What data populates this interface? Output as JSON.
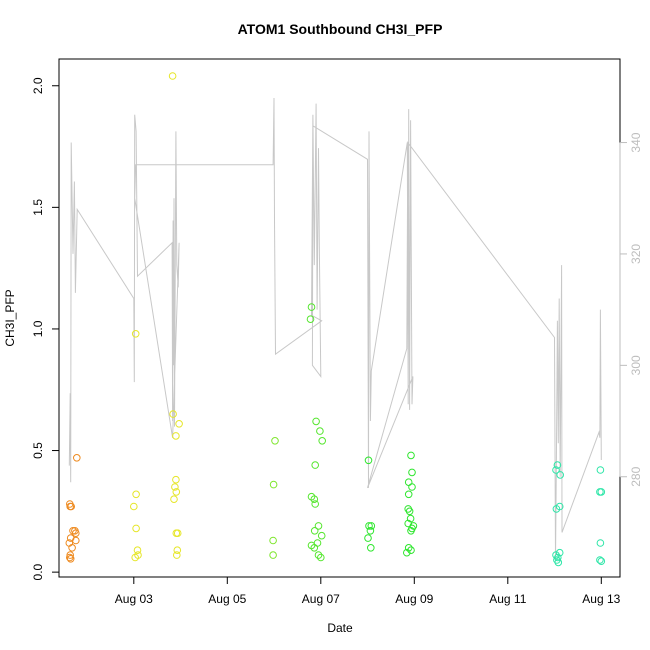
{
  "chart_data": {
    "type": "scatter",
    "title": "ATOM1 Southbound CH3I_PFP",
    "xlabel": "Date",
    "ylabel": "CH3I_PFP",
    "xlim": [
      1.4,
      13.4
    ],
    "ylim": [
      -0.02,
      2.11
    ],
    "y2lim": [
      262,
      355
    ],
    "x_tick_values": [
      3,
      5,
      7,
      9,
      11,
      13
    ],
    "x_tick_labels": [
      "Aug 03",
      "Aug 05",
      "Aug 07",
      "Aug 09",
      "Aug 11",
      "Aug 13"
    ],
    "y_tick_values": [
      0.0,
      0.5,
      1.0,
      1.5,
      2.0
    ],
    "y_tick_labels": [
      "0.0",
      "0.5",
      "1.0",
      "1.5",
      "2.0"
    ],
    "y2_tick_values": [
      280,
      300,
      320,
      340
    ],
    "y2_tick_labels": [
      "280",
      "300",
      "320",
      "340"
    ],
    "grid": false,
    "legend": "none",
    "points": [
      {
        "x": 1.63,
        "y": 0.28,
        "color": "#ee8a1f"
      },
      {
        "x": 1.64,
        "y": 0.27,
        "color": "#ee8a1f"
      },
      {
        "x": 1.66,
        "y": 0.27,
        "color": "#ee8a1f"
      },
      {
        "x": 1.78,
        "y": 0.47,
        "color": "#ee8a1f"
      },
      {
        "x": 1.7,
        "y": 0.17,
        "color": "#ee8a1f"
      },
      {
        "x": 1.74,
        "y": 0.17,
        "color": "#ee8a1f"
      },
      {
        "x": 1.76,
        "y": 0.16,
        "color": "#ee8a1f"
      },
      {
        "x": 1.65,
        "y": 0.14,
        "color": "#ee8a1f"
      },
      {
        "x": 1.76,
        "y": 0.13,
        "color": "#ee8a1f"
      },
      {
        "x": 1.62,
        "y": 0.12,
        "color": "#ee8a1f"
      },
      {
        "x": 1.68,
        "y": 0.1,
        "color": "#ee8a1f"
      },
      {
        "x": 1.64,
        "y": 0.07,
        "color": "#ee8a1f"
      },
      {
        "x": 1.63,
        "y": 0.06,
        "color": "#ee8a1f"
      },
      {
        "x": 1.65,
        "y": 0.055,
        "color": "#ee8a1f"
      },
      {
        "x": 3.04,
        "y": 0.98,
        "color": "#e6e629"
      },
      {
        "x": 3.05,
        "y": 0.32,
        "color": "#e6e629"
      },
      {
        "x": 3.0,
        "y": 0.27,
        "color": "#e6e629"
      },
      {
        "x": 3.05,
        "y": 0.18,
        "color": "#e6e629"
      },
      {
        "x": 3.08,
        "y": 0.09,
        "color": "#e6e629"
      },
      {
        "x": 3.09,
        "y": 0.07,
        "color": "#e6e629"
      },
      {
        "x": 3.03,
        "y": 0.06,
        "color": "#e6e629"
      },
      {
        "x": 3.83,
        "y": 2.04,
        "color": "#e6e629"
      },
      {
        "x": 3.84,
        "y": 0.65,
        "color": "#e6e629"
      },
      {
        "x": 3.97,
        "y": 0.61,
        "color": "#e6e629"
      },
      {
        "x": 3.9,
        "y": 0.56,
        "color": "#e6e629"
      },
      {
        "x": 3.9,
        "y": 0.38,
        "color": "#e6e629"
      },
      {
        "x": 3.88,
        "y": 0.35,
        "color": "#e6e629"
      },
      {
        "x": 3.91,
        "y": 0.33,
        "color": "#e6e629"
      },
      {
        "x": 3.86,
        "y": 0.3,
        "color": "#e6e629"
      },
      {
        "x": 3.91,
        "y": 0.16,
        "color": "#e6e629"
      },
      {
        "x": 3.94,
        "y": 0.16,
        "color": "#e6e629"
      },
      {
        "x": 3.93,
        "y": 0.09,
        "color": "#e6e629"
      },
      {
        "x": 3.92,
        "y": 0.07,
        "color": "#e6e629"
      },
      {
        "x": 6.02,
        "y": 0.54,
        "color": "#7fe62e"
      },
      {
        "x": 5.99,
        "y": 0.36,
        "color": "#7fe62e"
      },
      {
        "x": 5.98,
        "y": 0.13,
        "color": "#7fe62e"
      },
      {
        "x": 5.98,
        "y": 0.07,
        "color": "#7fe62e"
      },
      {
        "x": 6.8,
        "y": 1.09,
        "color": "#55e62e"
      },
      {
        "x": 6.78,
        "y": 1.04,
        "color": "#55e62e"
      },
      {
        "x": 6.9,
        "y": 0.62,
        "color": "#55e62e"
      },
      {
        "x": 6.98,
        "y": 0.58,
        "color": "#55e62e"
      },
      {
        "x": 7.03,
        "y": 0.54,
        "color": "#55e62e"
      },
      {
        "x": 6.88,
        "y": 0.44,
        "color": "#55e62e"
      },
      {
        "x": 6.8,
        "y": 0.31,
        "color": "#55e62e"
      },
      {
        "x": 6.86,
        "y": 0.3,
        "color": "#55e62e"
      },
      {
        "x": 6.88,
        "y": 0.28,
        "color": "#55e62e"
      },
      {
        "x": 6.95,
        "y": 0.19,
        "color": "#55e62e"
      },
      {
        "x": 6.87,
        "y": 0.17,
        "color": "#55e62e"
      },
      {
        "x": 7.02,
        "y": 0.15,
        "color": "#55e62e"
      },
      {
        "x": 6.8,
        "y": 0.11,
        "color": "#55e62e"
      },
      {
        "x": 6.86,
        "y": 0.1,
        "color": "#55e62e"
      },
      {
        "x": 6.93,
        "y": 0.12,
        "color": "#55e62e"
      },
      {
        "x": 6.95,
        "y": 0.07,
        "color": "#55e62e"
      },
      {
        "x": 7.0,
        "y": 0.06,
        "color": "#55e62e"
      },
      {
        "x": 8.02,
        "y": 0.46,
        "color": "#2ee62e"
      },
      {
        "x": 8.08,
        "y": 0.19,
        "color": "#2ee62e"
      },
      {
        "x": 8.03,
        "y": 0.19,
        "color": "#2ee62e"
      },
      {
        "x": 8.06,
        "y": 0.17,
        "color": "#2ee62e"
      },
      {
        "x": 8.01,
        "y": 0.14,
        "color": "#2ee62e"
      },
      {
        "x": 8.07,
        "y": 0.1,
        "color": "#2ee62e"
      },
      {
        "x": 8.93,
        "y": 0.48,
        "color": "#2ee62e"
      },
      {
        "x": 8.95,
        "y": 0.41,
        "color": "#2ee62e"
      },
      {
        "x": 8.88,
        "y": 0.37,
        "color": "#2ee62e"
      },
      {
        "x": 8.95,
        "y": 0.35,
        "color": "#2ee62e"
      },
      {
        "x": 8.88,
        "y": 0.32,
        "color": "#2ee62e"
      },
      {
        "x": 8.87,
        "y": 0.26,
        "color": "#2ee62e"
      },
      {
        "x": 8.9,
        "y": 0.25,
        "color": "#2ee62e"
      },
      {
        "x": 8.92,
        "y": 0.22,
        "color": "#2ee62e"
      },
      {
        "x": 8.87,
        "y": 0.2,
        "color": "#2ee62e"
      },
      {
        "x": 8.98,
        "y": 0.19,
        "color": "#2ee62e"
      },
      {
        "x": 8.95,
        "y": 0.18,
        "color": "#2ee62e"
      },
      {
        "x": 8.93,
        "y": 0.17,
        "color": "#2ee62e"
      },
      {
        "x": 8.88,
        "y": 0.1,
        "color": "#2ee62e"
      },
      {
        "x": 8.93,
        "y": 0.09,
        "color": "#2ee62e"
      },
      {
        "x": 8.84,
        "y": 0.08,
        "color": "#2ee62e"
      },
      {
        "x": 12.06,
        "y": 0.44,
        "color": "#2ee6a8"
      },
      {
        "x": 12.03,
        "y": 0.42,
        "color": "#2ee6a8"
      },
      {
        "x": 12.12,
        "y": 0.4,
        "color": "#2ee6a8"
      },
      {
        "x": 12.11,
        "y": 0.27,
        "color": "#2ee6a8"
      },
      {
        "x": 12.04,
        "y": 0.26,
        "color": "#2ee6a8"
      },
      {
        "x": 12.11,
        "y": 0.08,
        "color": "#2ee6a8"
      },
      {
        "x": 12.03,
        "y": 0.07,
        "color": "#2ee6a8"
      },
      {
        "x": 12.07,
        "y": 0.06,
        "color": "#2ee6a8"
      },
      {
        "x": 12.05,
        "y": 0.05,
        "color": "#2ee6a8"
      },
      {
        "x": 12.08,
        "y": 0.04,
        "color": "#2ee6a8"
      },
      {
        "x": 12.98,
        "y": 0.42,
        "color": "#2ee6a8"
      },
      {
        "x": 12.97,
        "y": 0.33,
        "color": "#2ee6a8"
      },
      {
        "x": 13.0,
        "y": 0.33,
        "color": "#2ee6a8"
      },
      {
        "x": 12.98,
        "y": 0.12,
        "color": "#2ee6a8"
      },
      {
        "x": 12.97,
        "y": 0.05,
        "color": "#2ee6a8"
      },
      {
        "x": 13.0,
        "y": 0.045,
        "color": "#2ee6a8"
      }
    ],
    "line_series": {
      "color": "#c8c8c8",
      "axis": "right",
      "points": [
        [
          1.62,
          282
        ],
        [
          1.64,
          295
        ],
        [
          1.65,
          279
        ],
        [
          1.66,
          340
        ],
        [
          1.7,
          320
        ],
        [
          1.73,
          333
        ],
        [
          1.75,
          313
        ],
        [
          1.79,
          328
        ],
        [
          3.0,
          312
        ],
        [
          3.01,
          297
        ],
        [
          3.02,
          345
        ],
        [
          3.05,
          342
        ],
        [
          3.08,
          316
        ],
        [
          3.82,
          322
        ],
        [
          3.83,
          290
        ],
        [
          3.84,
          326
        ],
        [
          3.85,
          300
        ],
        [
          3.86,
          330
        ],
        [
          3.87,
          289
        ],
        [
          3.9,
          342
        ],
        [
          3.92,
          318
        ],
        [
          3.95,
          314
        ],
        [
          3.97,
          322
        ],
        [
          3.83,
          287
        ],
        [
          3.02,
          330
        ],
        [
          3.04,
          336
        ],
        [
          5.98,
          336
        ],
        [
          6.0,
          348
        ],
        [
          6.01,
          326
        ],
        [
          6.03,
          302
        ],
        [
          7.02,
          308
        ],
        [
          6.8,
          309
        ],
        [
          6.83,
          345
        ],
        [
          6.86,
          318
        ],
        [
          6.9,
          347
        ],
        [
          6.92,
          310
        ],
        [
          6.95,
          339
        ],
        [
          6.97,
          320
        ],
        [
          7.0,
          298
        ],
        [
          6.82,
          300
        ],
        [
          6.83,
          343
        ],
        [
          8.0,
          337
        ],
        [
          8.02,
          278
        ],
        [
          8.03,
          342
        ],
        [
          8.06,
          290
        ],
        [
          8.08,
          299
        ],
        [
          8.85,
          340
        ],
        [
          8.87,
          293
        ],
        [
          8.88,
          346
        ],
        [
          8.9,
          292
        ],
        [
          8.92,
          344
        ],
        [
          8.95,
          293
        ],
        [
          8.97,
          298
        ],
        [
          8.0,
          278
        ],
        [
          8.84,
          303
        ],
        [
          8.86,
          340
        ],
        [
          12.0,
          305
        ],
        [
          12.02,
          265
        ],
        [
          12.04,
          283
        ],
        [
          12.06,
          308
        ],
        [
          12.08,
          286
        ],
        [
          12.1,
          312
        ],
        [
          12.12,
          280
        ],
        [
          12.15,
          318
        ],
        [
          12.16,
          270
        ],
        [
          12.95,
          288
        ],
        [
          12.97,
          287
        ],
        [
          12.98,
          310
        ],
        [
          13.0,
          283
        ]
      ]
    }
  }
}
